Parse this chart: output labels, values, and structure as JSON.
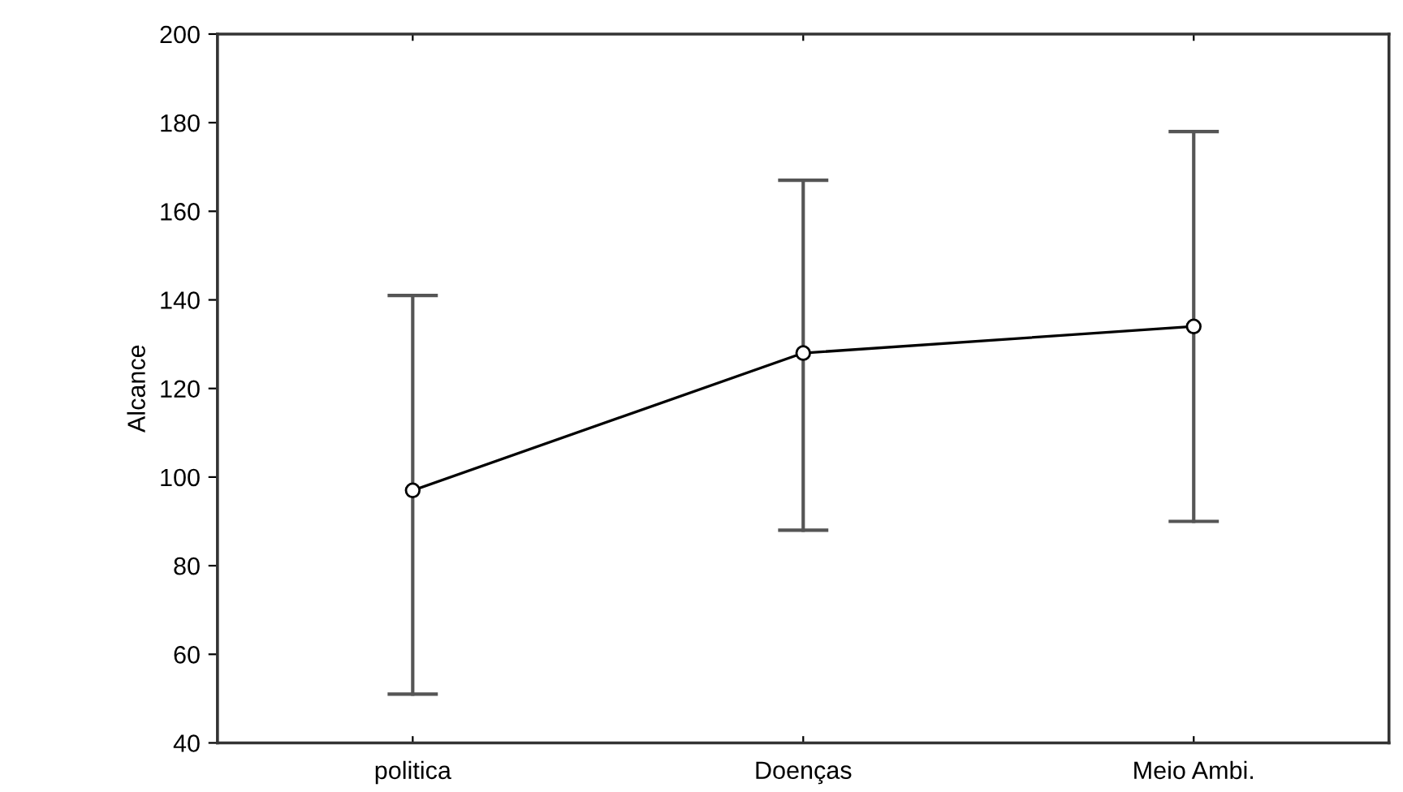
{
  "chart_data": {
    "type": "line",
    "ylabel": "Alcance",
    "categories": [
      "politica",
      "Doenças",
      "Meio Ambi."
    ],
    "series": [
      {
        "color": "#000000",
        "values": [
          97,
          128,
          134
        ],
        "errors": [
          [
            51,
            141
          ],
          [
            88,
            167
          ],
          [
            90,
            178
          ]
        ]
      }
    ],
    "ylim": [
      40,
      200
    ],
    "yticks": [
      40,
      60,
      80,
      100,
      120,
      140,
      160,
      180,
      200
    ],
    "marker": "circle",
    "line_style": "solid",
    "grid": false,
    "legend": false
  }
}
